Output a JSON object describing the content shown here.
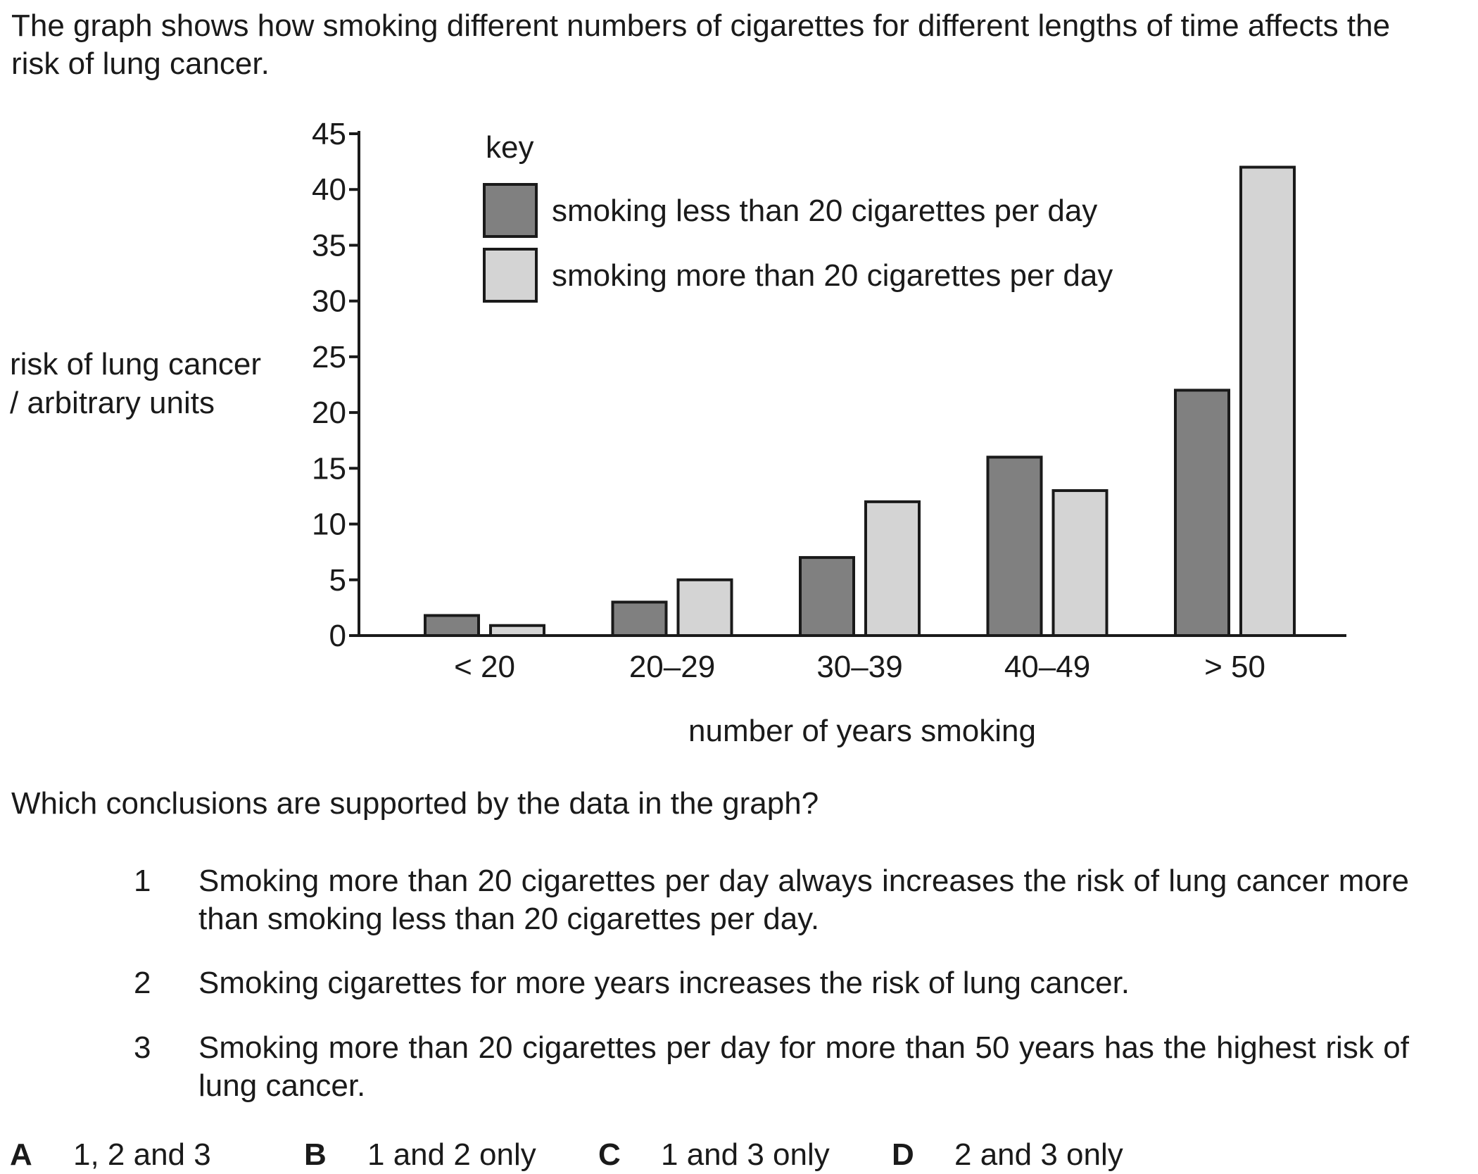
{
  "intro": "The graph shows how smoking different numbers of cigarettes for different lengths of time affects the risk of lung cancer.",
  "chart_data": {
    "type": "bar",
    "categories": [
      "< 20",
      "20–29",
      "30–39",
      "40–49",
      "> 50"
    ],
    "series": [
      {
        "name": "smoking less than 20 cigarettes per day",
        "values": [
          1.8,
          3,
          7,
          16,
          22
        ],
        "color": "#808080"
      },
      {
        "name": "smoking more than 20 cigarettes per day",
        "values": [
          0.9,
          5,
          12,
          13,
          42
        ],
        "color": "#d4d4d4"
      }
    ],
    "xlabel": "number of years smoking",
    "ylabel_line1": "risk of lung cancer",
    "ylabel_line2": "/ arbitrary units",
    "ylim": [
      0,
      45
    ],
    "yticks": [
      "0",
      "5",
      "10",
      "15",
      "20",
      "25",
      "30",
      "35",
      "40",
      "45"
    ],
    "legend_title": "key",
    "legend_position": "top-left",
    "grid": false
  },
  "question": "Which conclusions are supported by the data in the graph?",
  "statements": [
    {
      "num": "1",
      "text": "Smoking more than 20 cigarettes per day always increases the risk of lung cancer more than smoking less than 20 cigarettes per day."
    },
    {
      "num": "2",
      "text": "Smoking cigarettes for more years increases the risk of lung cancer."
    },
    {
      "num": "3",
      "text": "Smoking more than 20 cigarettes per day for more than 50 years has the highest risk of lung cancer."
    }
  ],
  "options": [
    {
      "letter": "A",
      "text": "1, 2 and 3"
    },
    {
      "letter": "B",
      "text": "1 and 2 only"
    },
    {
      "letter": "C",
      "text": "1 and 3 only"
    },
    {
      "letter": "D",
      "text": "2 and 3 only"
    }
  ]
}
